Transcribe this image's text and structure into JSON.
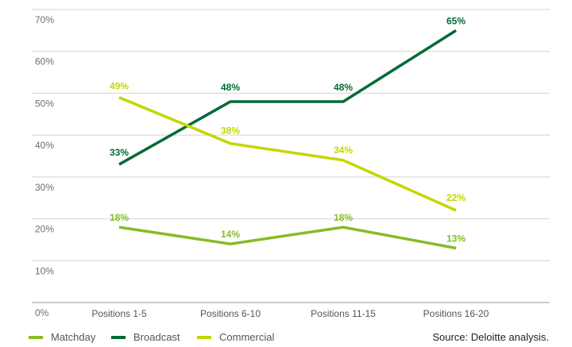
{
  "chart_data": {
    "type": "line",
    "categories": [
      "Positions 1-5",
      "Positions 6-10",
      "Positions 11-15",
      "Positions 16-20"
    ],
    "series": [
      {
        "name": "Matchday",
        "values": [
          18,
          14,
          18,
          13
        ],
        "color": "#86bc25"
      },
      {
        "name": "Broadcast",
        "values": [
          33,
          48,
          48,
          65
        ],
        "color": "#046a38"
      },
      {
        "name": "Commercial",
        "values": [
          49,
          38,
          34,
          22
        ],
        "color": "#c4d600"
      }
    ],
    "ylim": [
      0,
      70
    ],
    "yticks": [
      "0%",
      "10%",
      "20%",
      "30%",
      "40%",
      "50%",
      "60%",
      "70%"
    ],
    "value_suffix": "%",
    "grid": true,
    "legend_position": "bottom-left",
    "source": "Source: Deloitte analysis."
  }
}
